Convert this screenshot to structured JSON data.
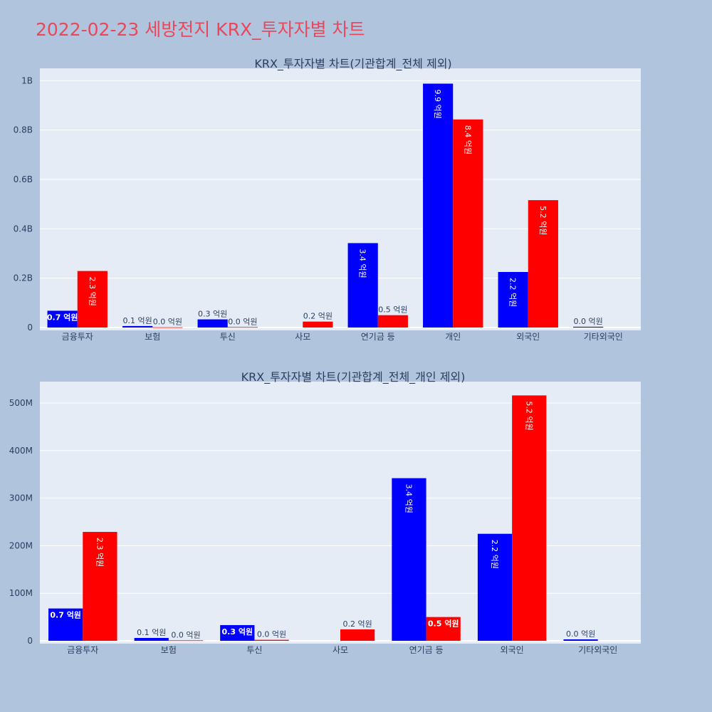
{
  "page": {
    "title": "2022-02-23 세방전지 KRX_투자자별 차트"
  },
  "colors": {
    "buy": "#0000ff",
    "sell": "#ff0000",
    "plot_bg": "#e5ecf6",
    "paper_bg": "#b0c4de",
    "title": "#e8485a"
  },
  "chart_data": [
    {
      "type": "bar",
      "title": "KRX_투자자별 차트(기관합계_전체 제외)",
      "categories": [
        "금융투자",
        "보험",
        "투신",
        "사모",
        "연기금 등",
        "개인",
        "외국인",
        "기타외국인"
      ],
      "series": [
        {
          "color": "#0000ff",
          "values": [
            68000000,
            6000000,
            33000000,
            0,
            342000000,
            988000000,
            225000000,
            3000000
          ],
          "labels": [
            "0.7 억원",
            "0.1 억원",
            "0.3 억원",
            "",
            "3.4 억원",
            "9.9 억원",
            "2.2 억원",
            "0.0 억원"
          ]
        },
        {
          "color": "#ff0000",
          "values": [
            229000000,
            1000000,
            2000000,
            24000000,
            50000000,
            843000000,
            516000000,
            0
          ],
          "labels": [
            "2.3 억원",
            "0.0 억원",
            "0.0 억원",
            "0.2 억원",
            "0.5 억원",
            "8.4 억원",
            "5.2 억원",
            ""
          ]
        }
      ],
      "ylim": [
        0,
        1050000000
      ],
      "yticks": [
        0,
        200000000,
        400000000,
        600000000,
        800000000,
        1000000000
      ],
      "ytick_labels": [
        "0",
        "0.2B",
        "0.4B",
        "0.6B",
        "0.8B",
        "1B"
      ],
      "grid": true
    },
    {
      "type": "bar",
      "title": "KRX_투자자별 차트(기관합계_전체_개인 제외)",
      "categories": [
        "금융투자",
        "보험",
        "투신",
        "사모",
        "연기금 등",
        "외국인",
        "기타외국인"
      ],
      "series": [
        {
          "color": "#0000ff",
          "values": [
            68000000,
            6000000,
            33000000,
            0,
            342000000,
            225000000,
            3000000
          ],
          "labels": [
            "0.7 억원",
            "0.1 억원",
            "0.3 억원",
            "",
            "3.4 억원",
            "2.2 억원",
            "0.0 억원"
          ]
        },
        {
          "color": "#ff0000",
          "values": [
            229000000,
            1000000,
            2000000,
            24000000,
            50000000,
            516000000,
            0
          ],
          "labels": [
            "2.3 억원",
            "0.0 억원",
            "0.0 억원",
            "0.2 억원",
            "0.5 억원",
            "5.2 억원",
            ""
          ]
        }
      ],
      "ylim": [
        0,
        545000000
      ],
      "yticks": [
        0,
        100000000,
        200000000,
        300000000,
        400000000,
        500000000
      ],
      "ytick_labels": [
        "0",
        "100M",
        "200M",
        "300M",
        "400M",
        "500M"
      ],
      "grid": true
    }
  ]
}
